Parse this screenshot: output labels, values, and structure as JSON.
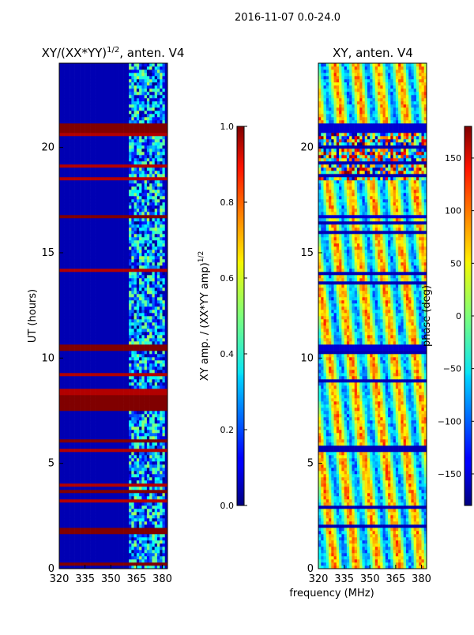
{
  "figure": {
    "suptitle": "2016-11-07 0.0-24.0",
    "shared_xlabel": "frequency (MHz)"
  },
  "chart_data": [
    {
      "type": "heatmap",
      "title": "XY/(XX*YY)",
      "title_exponent": "1/2",
      "title_suffix": ", anten. V4",
      "xlabel": "",
      "ylabel": "UT (hours)",
      "x_ticks": [
        "320",
        "335",
        "350",
        "365",
        "380"
      ],
      "x_tick_values": [
        320,
        335,
        350,
        365,
        380
      ],
      "y_ticks": [
        "0",
        "5",
        "10",
        "15",
        "20"
      ],
      "y_tick_values": [
        0,
        5,
        10,
        15,
        20
      ],
      "xlim": [
        320,
        383
      ],
      "ylim": [
        0,
        24
      ],
      "colormap": "jet",
      "colorbar": {
        "label": "XY amp. / (XX*YY amp)",
        "label_exponent": "1/2",
        "range": [
          0.0,
          1.0
        ],
        "ticks": [
          "0.0",
          "0.2",
          "0.4",
          "0.6",
          "0.8",
          "1.0"
        ],
        "tick_values": [
          0.0,
          0.2,
          0.4,
          0.6,
          0.8,
          1.0
        ]
      },
      "data_summary": {
        "background_value": 0.05,
        "high_band_range_mhz": [
          361,
          382
        ],
        "flagged_rows_value": 1.0,
        "flagged_ut_ranges": [
          [
            0.2,
            0.3
          ],
          [
            1.7,
            1.9
          ],
          [
            3.6,
            3.8
          ],
          [
            6.0,
            6.2
          ],
          [
            7.5,
            8.3
          ],
          [
            10.4,
            10.7
          ],
          [
            16.6,
            16.8
          ],
          [
            20.7,
            21.1
          ]
        ]
      }
    },
    {
      "type": "heatmap",
      "title": "XY, anten. V4",
      "xlabel": "",
      "ylabel": "",
      "x_ticks": [
        "320",
        "335",
        "350",
        "365",
        "380"
      ],
      "x_tick_values": [
        320,
        335,
        350,
        365,
        380
      ],
      "y_ticks": [
        "0",
        "5",
        "10",
        "15",
        "20"
      ],
      "y_tick_values": [
        0,
        5,
        10,
        15,
        20
      ],
      "xlim": [
        320,
        383
      ],
      "ylim": [
        0,
        24
      ],
      "colormap": "jet",
      "colorbar": {
        "label": "phase (deg)",
        "range": [
          -180,
          180
        ],
        "ticks": [
          "−150",
          "−100",
          "−50",
          "0",
          "50",
          "100",
          "150"
        ],
        "tick_values": [
          -150,
          -100,
          -50,
          0,
          50,
          100,
          150
        ]
      },
      "data_summary": {
        "noisy_ut_range": [
          18.5,
          21
        ],
        "flagged_ut_ranges": [
          [
            10.4,
            10.6
          ],
          [
            16.6,
            16.8
          ],
          [
            20.7,
            21.1
          ]
        ]
      }
    }
  ]
}
